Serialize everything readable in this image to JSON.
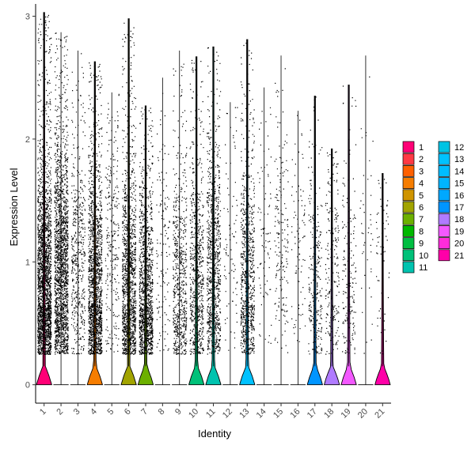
{
  "chart_data": {
    "type": "violin",
    "title": "",
    "xlabel": "Identity",
    "ylabel": "Expression Level",
    "ylim": [
      -0.15,
      3.1
    ],
    "yticks": [
      0,
      1,
      2,
      3
    ],
    "categories": [
      "1",
      "2",
      "3",
      "4",
      "5",
      "6",
      "7",
      "8",
      "9",
      "10",
      "11",
      "12",
      "13",
      "14",
      "15",
      "16",
      "17",
      "18",
      "19",
      "20",
      "21"
    ],
    "colors": [
      "#F8766D",
      "#E7851E",
      "#D09400",
      "#B2A100",
      "#89AC00",
      "#45B500",
      "#00BC51",
      "#00C087",
      "#00C0B2",
      "#00BCD6",
      "#00B3F2",
      "#00A6FF",
      "#7F96FF",
      "#BC81FF",
      "#E26EF7",
      "#F863DF",
      "#FF62BF",
      "#FF6A9A",
      "#F8766D",
      "#E7851E",
      "#FF6C91"
    ],
    "violin_colors": [
      "#F8766D",
      "#E58700",
      "#C99800",
      "#A3A500",
      "#6BB100",
      "#00BA38",
      "#00BF7D",
      "#00C0AF",
      "#00BCD8",
      "#00B0F6",
      "#619CFF",
      "#B983FF",
      "#E76BF3",
      "#FD61D1",
      "#FF67A4",
      "#F8766D",
      "#E58700",
      "#C99800",
      "#A3A500",
      "#6BB100",
      "#00BA38"
    ],
    "cluster_colors": [
      "#F8766D",
      "#E68613",
      "#CD9600",
      "#ABA300",
      "#7CAE00",
      "#0CB702",
      "#00BE67",
      "#00C19A",
      "#00BFC4",
      "#00B8E7",
      "#00A9FF",
      "#8494FF",
      "#C77CFF",
      "#ED68ED",
      "#FF61CC",
      "#FF68A1",
      "#FF6C91",
      "#FF6C91",
      "#FF6C91",
      "#FF6C91",
      "#FF6C91"
    ],
    "max_expression": [
      3.03,
      2.87,
      2.72,
      2.63,
      2.38,
      2.98,
      2.27,
      2.5,
      2.72,
      2.67,
      2.75,
      2.3,
      2.81,
      2.42,
      2.68,
      2.23,
      2.35,
      1.92,
      2.44,
      2.68,
      1.72
    ],
    "violin_max": [
      3.03,
      0,
      0,
      2.63,
      0,
      2.98,
      2.27,
      0,
      0,
      2.67,
      2.75,
      0,
      2.81,
      0,
      0,
      0,
      2.35,
      1.92,
      2.44,
      0,
      1.72
    ],
    "violin_base_width": [
      0.85,
      0,
      0,
      0.85,
      0,
      0.85,
      0.85,
      0,
      0,
      0.85,
      0.85,
      0,
      0.85,
      0,
      0,
      0,
      0.85,
      0.85,
      0.85,
      0,
      0.85
    ],
    "point_density": [
      1.0,
      0.85,
      0.22,
      0.7,
      0.12,
      0.6,
      0.55,
      0.06,
      0.3,
      0.3,
      0.4,
      0.04,
      0.35,
      0.04,
      0.08,
      0.04,
      0.12,
      0.1,
      0.08,
      0.02,
      0.03
    ],
    "points_median": [
      0.75,
      0.9,
      0.95,
      0.7,
      1.1,
      0.7,
      0.6,
      1.0,
      0.7,
      0.8,
      0.9,
      1.0,
      0.8,
      1.1,
      1.1,
      1.0,
      0.8,
      0.8,
      0.7,
      1.2,
      1.0
    ],
    "legend_position": "right",
    "grid": false
  }
}
